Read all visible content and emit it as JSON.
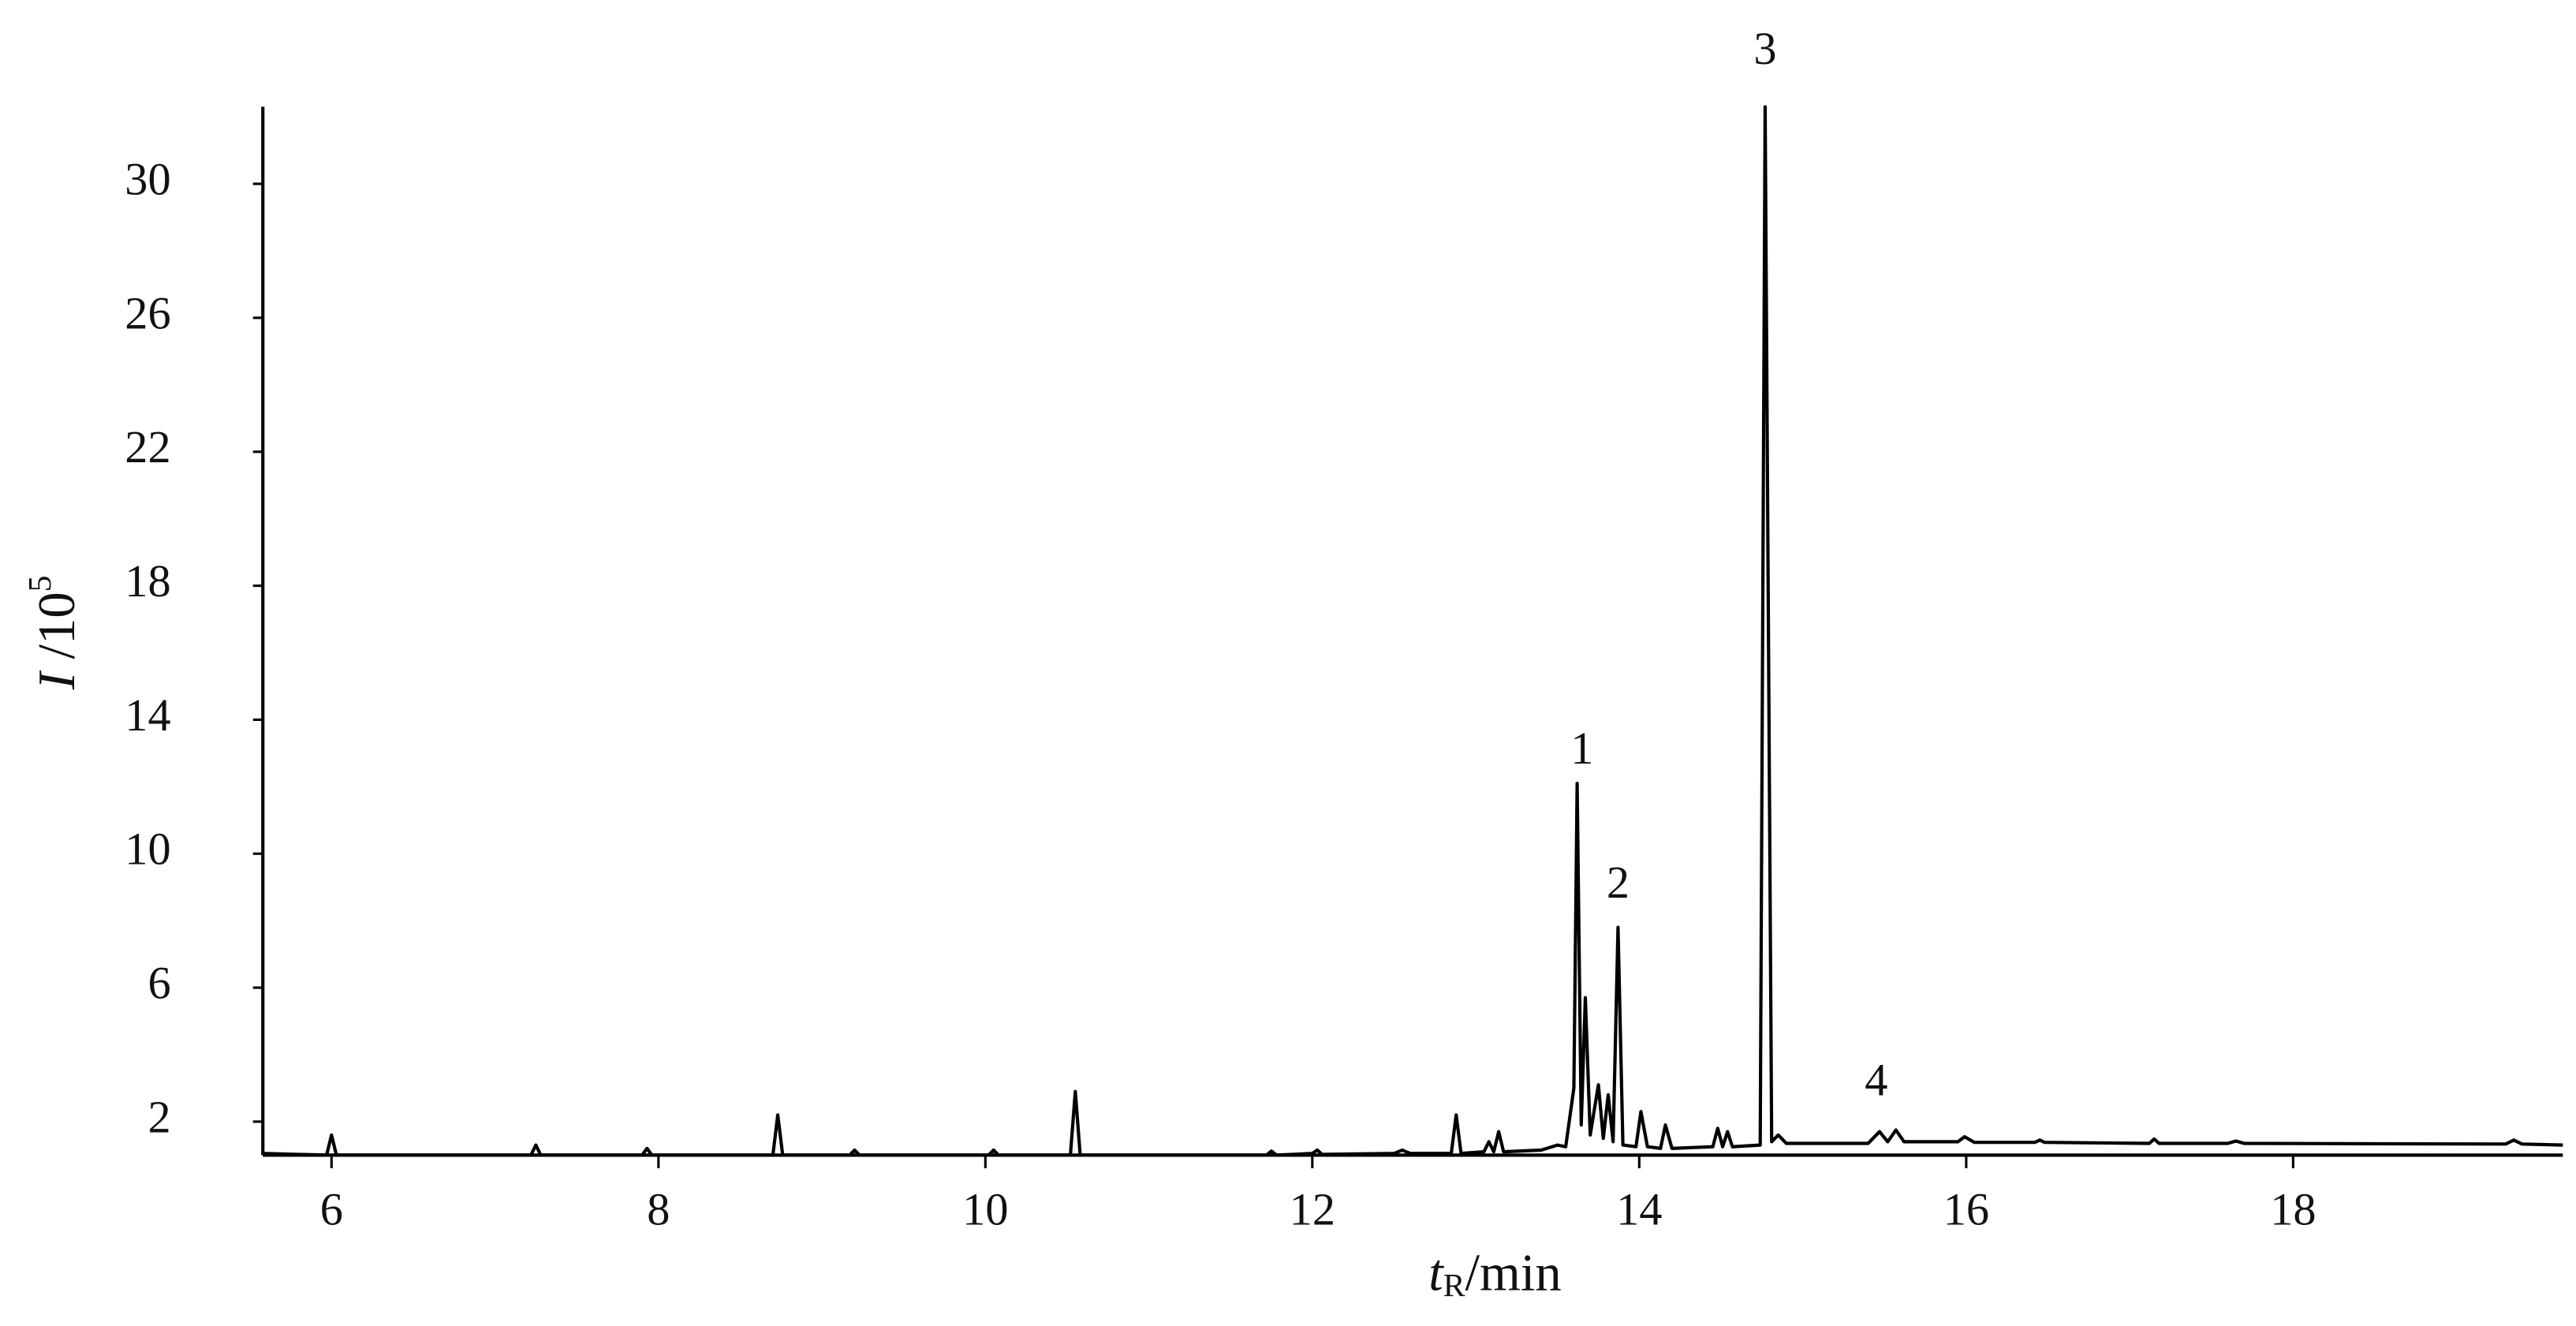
{
  "chart_data": {
    "type": "line",
    "x_label": [
      "t",
      "R",
      "/min"
    ],
    "y_label": [
      "I",
      " /10",
      "5"
    ],
    "xlim": [
      5.58,
      19.65
    ],
    "xticks": [
      6,
      8,
      10,
      12,
      14,
      16,
      18
    ],
    "ylim": [
      1,
      32.3
    ],
    "yticks": [
      2,
      6,
      10,
      14,
      18,
      22,
      26,
      30
    ],
    "color": "#000000",
    "x": [
      5.58,
      5.97,
      6.0,
      6.03,
      7.22,
      7.25,
      7.28,
      7.9,
      7.93,
      7.96,
      8.7,
      8.73,
      8.76,
      9.17,
      9.2,
      9.23,
      10.02,
      10.05,
      10.08,
      10.52,
      10.55,
      10.58,
      11.72,
      11.75,
      11.78,
      12.0,
      12.03,
      12.06,
      12.5,
      12.55,
      12.6,
      12.85,
      12.88,
      12.91,
      13.05,
      13.08,
      13.11,
      13.14,
      13.17,
      13.4,
      13.5,
      13.55,
      13.6,
      13.62,
      13.645,
      13.67,
      13.7,
      13.75,
      13.78,
      13.81,
      13.84,
      13.87,
      13.9,
      13.98,
      14.01,
      14.05,
      14.13,
      14.16,
      14.2,
      14.45,
      14.48,
      14.51,
      14.54,
      14.57,
      14.74,
      14.77,
      14.81,
      14.85,
      14.9,
      15.4,
      15.47,
      15.52,
      15.57,
      15.62,
      15.95,
      15.99,
      16.05,
      16.42,
      16.45,
      16.48,
      17.12,
      17.15,
      17.18,
      17.6,
      17.65,
      17.7,
      19.3,
      19.35,
      19.4,
      19.65
    ],
    "values": [
      1.05,
      1.0,
      1.6,
      1.0,
      1.0,
      1.3,
      1.0,
      1.0,
      1.2,
      1.0,
      1.0,
      2.2,
      1.0,
      1.0,
      1.15,
      1.0,
      1.0,
      1.15,
      1.0,
      1.0,
      2.9,
      1.0,
      1.0,
      1.12,
      1.0,
      1.05,
      1.15,
      1.02,
      1.05,
      1.15,
      1.05,
      1.05,
      2.2,
      1.05,
      1.1,
      1.4,
      1.1,
      1.7,
      1.1,
      1.15,
      1.3,
      1.25,
      3.0,
      12.1,
      1.9,
      5.7,
      1.6,
      3.1,
      1.5,
      2.8,
      1.4,
      7.8,
      1.3,
      1.25,
      2.3,
      1.25,
      1.2,
      1.9,
      1.2,
      1.25,
      1.8,
      1.25,
      1.7,
      1.25,
      1.3,
      32.3,
      1.4,
      1.6,
      1.35,
      1.35,
      1.7,
      1.4,
      1.75,
      1.4,
      1.4,
      1.55,
      1.38,
      1.38,
      1.45,
      1.38,
      1.35,
      1.48,
      1.35,
      1.35,
      1.42,
      1.35,
      1.33,
      1.45,
      1.33,
      1.3
    ],
    "annotations": [
      {
        "text": "1",
        "x": 13.65,
        "y": 13.0
      },
      {
        "text": "2",
        "x": 13.87,
        "y": 9.0
      },
      {
        "text": "3",
        "x": 14.77,
        "y": 33.9
      },
      {
        "text": "4",
        "x": 15.45,
        "y": 3.1
      }
    ]
  }
}
